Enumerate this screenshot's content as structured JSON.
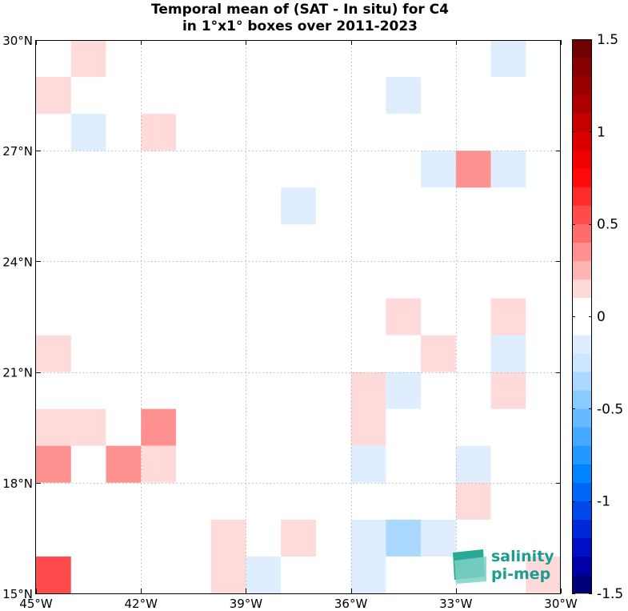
{
  "chart_data": {
    "type": "heatmap",
    "title": [
      "Temporal mean of (SAT - In situ) for C4",
      "in 1°x1° boxes over 2011-2023"
    ],
    "x_ticks": [
      {
        "value": -45,
        "label": "45°W"
      },
      {
        "value": -42,
        "label": "42°W"
      },
      {
        "value": -39,
        "label": "39°W"
      },
      {
        "value": -36,
        "label": "36°W"
      },
      {
        "value": -33,
        "label": "33°W"
      },
      {
        "value": -30,
        "label": "30°W"
      }
    ],
    "y_ticks": [
      {
        "value": 15,
        "label": "15°N"
      },
      {
        "value": 18,
        "label": "18°N"
      },
      {
        "value": 21,
        "label": "21°N"
      },
      {
        "value": 24,
        "label": "24°N"
      },
      {
        "value": 27,
        "label": "27°N"
      },
      {
        "value": 30,
        "label": "30°N"
      }
    ],
    "xlim": [
      -45,
      -30
    ],
    "ylim": [
      15,
      30
    ],
    "grid": true,
    "cells_note": "each cell: lon = west edge (deg E), lat = south edge (deg N), value = mean difference",
    "cells": [
      {
        "lon": -44,
        "lat": 29,
        "value": 0.15
      },
      {
        "lon": -45,
        "lat": 28,
        "value": 0.15
      },
      {
        "lon": -44,
        "lat": 27,
        "value": -0.15
      },
      {
        "lon": -42,
        "lat": 27,
        "value": 0.15
      },
      {
        "lon": -35,
        "lat": 28,
        "value": -0.15
      },
      {
        "lon": -32,
        "lat": 29,
        "value": -0.15
      },
      {
        "lon": -34,
        "lat": 26,
        "value": -0.15
      },
      {
        "lon": -33,
        "lat": 26,
        "value": 0.3
      },
      {
        "lon": -32,
        "lat": 26,
        "value": -0.15
      },
      {
        "lon": -38,
        "lat": 25,
        "value": -0.15
      },
      {
        "lon": -35,
        "lat": 22,
        "value": 0.15
      },
      {
        "lon": -32,
        "lat": 22,
        "value": 0.15
      },
      {
        "lon": -45,
        "lat": 21,
        "value": 0.15
      },
      {
        "lon": -34,
        "lat": 21,
        "value": 0.15
      },
      {
        "lon": -32,
        "lat": 21,
        "value": -0.15
      },
      {
        "lon": -36,
        "lat": 20,
        "value": 0.15
      },
      {
        "lon": -35,
        "lat": 20,
        "value": -0.15
      },
      {
        "lon": -32,
        "lat": 20,
        "value": 0.15
      },
      {
        "lon": -45,
        "lat": 19,
        "value": 0.15
      },
      {
        "lon": -44,
        "lat": 19,
        "value": 0.15
      },
      {
        "lon": -42,
        "lat": 19,
        "value": 0.3
      },
      {
        "lon": -36,
        "lat": 19,
        "value": 0.15
      },
      {
        "lon": -45,
        "lat": 18,
        "value": 0.3
      },
      {
        "lon": -43,
        "lat": 18,
        "value": 0.3
      },
      {
        "lon": -42,
        "lat": 18,
        "value": 0.15
      },
      {
        "lon": -36,
        "lat": 18,
        "value": -0.15
      },
      {
        "lon": -33,
        "lat": 18,
        "value": -0.15
      },
      {
        "lon": -33,
        "lat": 17,
        "value": 0.15
      },
      {
        "lon": -40,
        "lat": 16,
        "value": 0.15
      },
      {
        "lon": -38,
        "lat": 16,
        "value": 0.15
      },
      {
        "lon": -36,
        "lat": 16,
        "value": -0.15
      },
      {
        "lon": -35,
        "lat": 16,
        "value": -0.3
      },
      {
        "lon": -34,
        "lat": 16,
        "value": -0.15
      },
      {
        "lon": -45,
        "lat": 15,
        "value": 0.55
      },
      {
        "lon": -40,
        "lat": 15,
        "value": 0.15
      },
      {
        "lon": -39,
        "lat": 15,
        "value": -0.15
      },
      {
        "lon": -36,
        "lat": 15,
        "value": -0.15
      },
      {
        "lon": -31,
        "lat": 15,
        "value": 0.15
      }
    ],
    "colorbar": {
      "min": -1.5,
      "max": 1.5,
      "step": 0.1,
      "ticks": [
        {
          "value": 1.5,
          "label": "1.5"
        },
        {
          "value": 1,
          "label": "1"
        },
        {
          "value": 0.5,
          "label": "0.5"
        },
        {
          "value": 0,
          "label": "0"
        },
        {
          "value": -0.5,
          "label": "-0.5"
        },
        {
          "value": -1,
          "label": "-1"
        },
        {
          "value": -1.5,
          "label": "-1.5"
        }
      ],
      "colors_low_to_high": [
        "#00007a",
        "#0000a6",
        "#0010c6",
        "#0028d8",
        "#0048ea",
        "#0066f8",
        "#0085ff",
        "#2299ff",
        "#44a9ff",
        "#66baff",
        "#88cbff",
        "#aad8ff",
        "#cce6ff",
        "#dfeeff",
        "#ffffff",
        "#ffffff",
        "#ffdada",
        "#ffb4b4",
        "#ff9090",
        "#ff6c6c",
        "#ff4b4b",
        "#ff2a2a",
        "#ff0a0a",
        "#f00000",
        "#da0000",
        "#c40000",
        "#ae0000",
        "#990000",
        "#860000",
        "#700000"
      ]
    }
  },
  "logo": {
    "line1": "salinity",
    "line2": "pi-mep"
  },
  "colors": {
    "positive_light": "#ffdada",
    "positive_mid": "#ffb4b4",
    "positive_strong": "#ff6c6c",
    "negative_light": "#dfeeff",
    "negative_mid": "#cce6ff",
    "logo": "#1a9e8f"
  }
}
